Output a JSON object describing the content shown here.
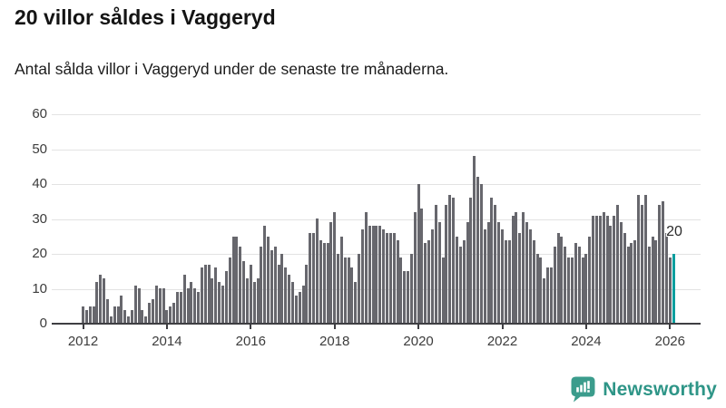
{
  "header": {
    "title": "20 villor såldes i Vaggeryd",
    "subtitle": "Antal sålda villor i Vaggeryd under de senaste tre månaderna."
  },
  "chart_data": {
    "type": "bar",
    "title": "20 villor såldes i Vaggeryd",
    "subtitle": "Antal sålda villor i Vaggeryd under de senaste tre månaderna.",
    "frequency": "monthly",
    "start_year": 2012,
    "x_tick_labels": [
      "2012",
      "2014",
      "2016",
      "2018",
      "2020",
      "2022",
      "2024",
      "2026"
    ],
    "y_tick_labels": [
      "0",
      "10",
      "20",
      "30",
      "40",
      "50",
      "60"
    ],
    "y_ticks": [
      0,
      10,
      20,
      30,
      40,
      50,
      60
    ],
    "ylim": [
      0,
      60
    ],
    "grid": true,
    "legend": "none",
    "values": [
      5,
      4,
      5,
      5,
      12,
      14,
      13,
      7,
      2,
      5,
      5,
      8,
      4,
      2,
      4,
      11,
      10,
      4,
      2,
      6,
      7,
      11,
      10,
      10,
      4,
      5,
      6,
      9,
      9,
      14,
      10,
      12,
      10,
      9,
      16,
      17,
      17,
      13,
      16,
      12,
      11,
      15,
      19,
      25,
      25,
      22,
      18,
      13,
      17,
      12,
      13,
      22,
      28,
      25,
      21,
      22,
      17,
      20,
      16,
      14,
      12,
      8,
      9,
      11,
      17,
      26,
      26,
      30,
      24,
      23,
      23,
      29,
      32,
      20,
      25,
      19,
      19,
      16,
      12,
      20,
      27,
      32,
      28,
      28,
      28,
      28,
      27,
      26,
      26,
      26,
      24,
      19,
      15,
      15,
      20,
      32,
      40,
      33,
      23,
      24,
      27,
      34,
      29,
      19,
      34,
      37,
      36,
      25,
      22,
      24,
      29,
      36,
      48,
      42,
      40,
      27,
      29,
      36,
      34,
      29,
      27,
      24,
      24,
      31,
      32,
      26,
      32,
      29,
      27,
      24,
      20,
      19,
      13,
      16,
      16,
      22,
      26,
      25,
      22,
      19,
      19,
      23,
      22,
      19,
      20,
      25,
      31,
      31,
      31,
      32,
      31,
      28,
      31,
      34,
      29,
      26,
      22,
      23,
      24,
      37,
      34,
      37,
      22,
      25,
      24,
      34,
      35,
      26,
      19,
      20
    ],
    "highlight_last": true,
    "highlight_value": 20,
    "highlight_label": "20",
    "colors": {
      "bar": "#67676d",
      "highlight": "#0a9e9e",
      "grid": "#e3e3e3",
      "axis": "#3e3e42",
      "tick_text": "#3c3c3c"
    }
  },
  "branding": {
    "logo_text": "Newsworthy",
    "logo_color": "#2e9587",
    "icon": "newsworthy-chart-bubble-icon"
  }
}
